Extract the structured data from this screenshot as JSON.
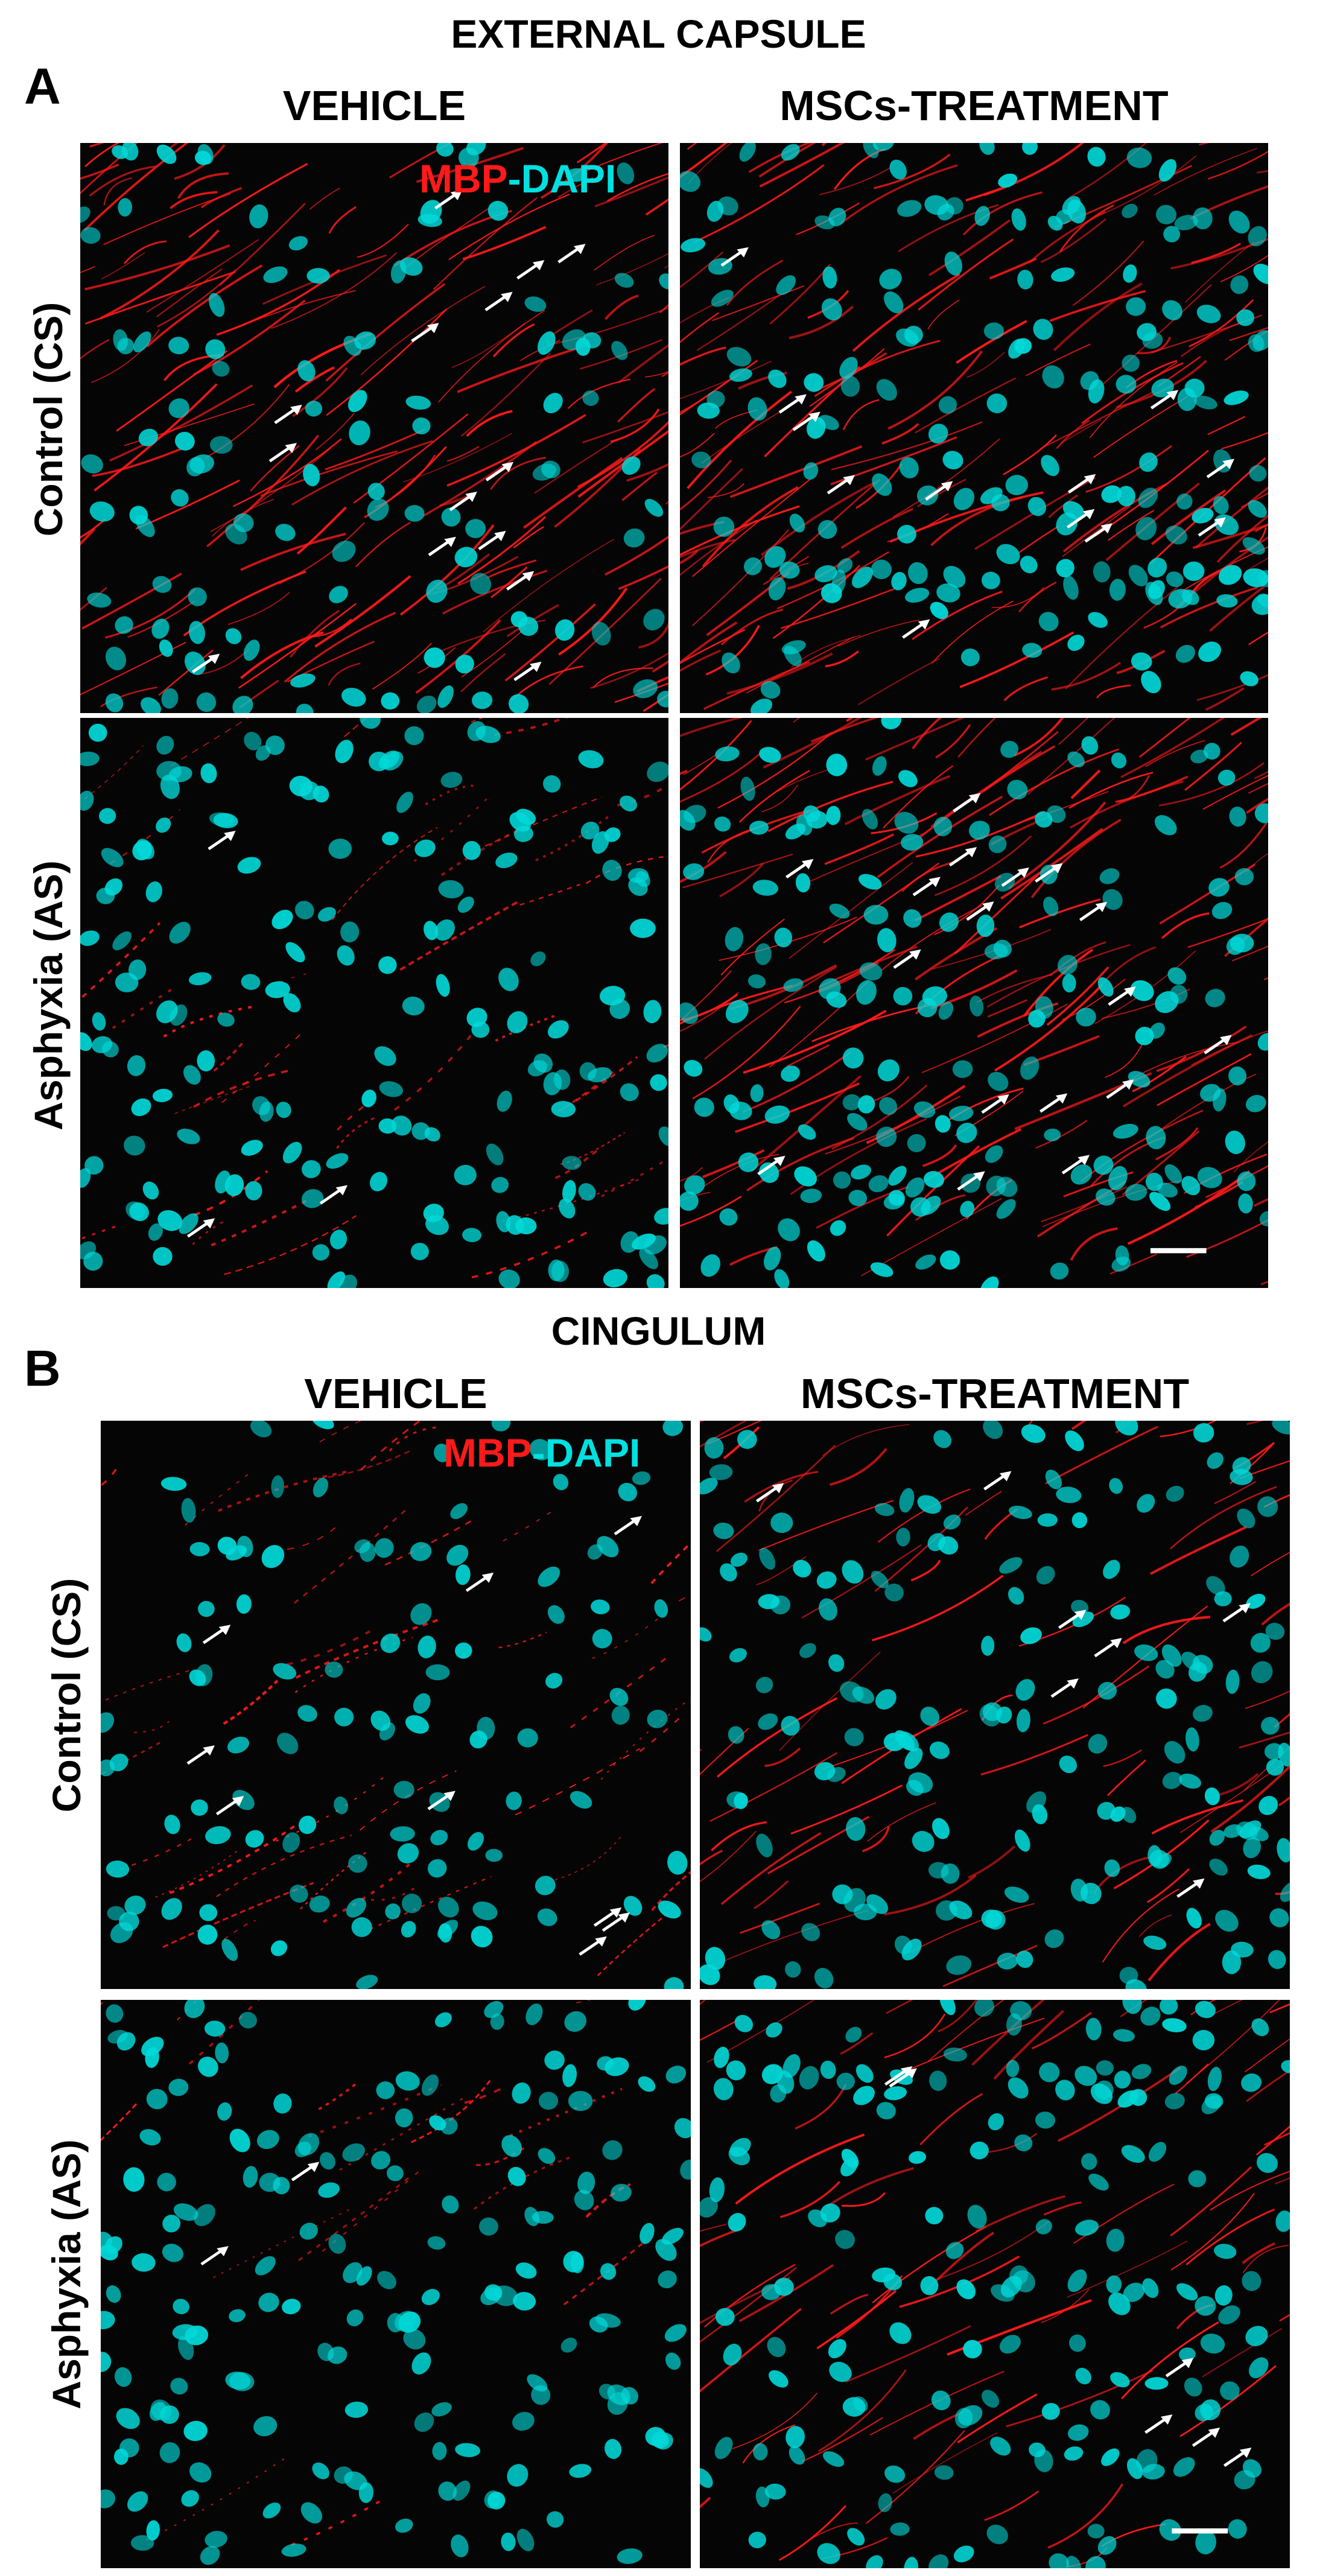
{
  "section_a": {
    "letter": "A",
    "title": "EXTERNAL CAPSULE",
    "col_vehicle": "VEHICLE",
    "col_treatment": "MSCs-TREATMENT",
    "row_control": "Control (CS)",
    "row_asphyxia": "Asphyxia (AS)"
  },
  "section_b": {
    "letter": "B",
    "title": "CINGULUM",
    "col_vehicle": "VEHICLE",
    "col_treatment": "MSCs-TREATMENT",
    "row_control": "Control (CS)",
    "row_asphyxia": "Asphyxia (AS)"
  },
  "legend": {
    "marker": "MBP",
    "separator": "-",
    "stain": "DAPI"
  },
  "colors": {
    "mbp": "#ff1a1a",
    "dapi": "#00d8d8",
    "background": "#050505",
    "arrow": "#ffffff"
  },
  "tiles": [
    {
      "id": "a-cs-vehicle",
      "seed": 11,
      "fibers": "dense",
      "nuclei": "medium",
      "arrows": 14
    },
    {
      "id": "a-cs-msc",
      "seed": 23,
      "fibers": "dense",
      "nuclei": "dense",
      "arrows": 12
    },
    {
      "id": "a-as-vehicle",
      "seed": 37,
      "fibers": "sparse",
      "nuclei": "dense",
      "arrows": 3
    },
    {
      "id": "a-as-msc",
      "seed": 41,
      "fibers": "dense",
      "nuclei": "dense",
      "arrows": 17
    },
    {
      "id": "b-cs-vehicle",
      "seed": 53,
      "fibers": "sparse",
      "nuclei": "medium",
      "arrows": 9
    },
    {
      "id": "b-cs-msc",
      "seed": 67,
      "fibers": "medium",
      "nuclei": "dense",
      "arrows": 7
    },
    {
      "id": "b-as-vehicle",
      "seed": 71,
      "fibers": "minimal",
      "nuclei": "dense",
      "arrows": 2
    },
    {
      "id": "b-as-msc",
      "seed": 83,
      "fibers": "medium",
      "nuclei": "dense",
      "arrows": 6
    }
  ]
}
